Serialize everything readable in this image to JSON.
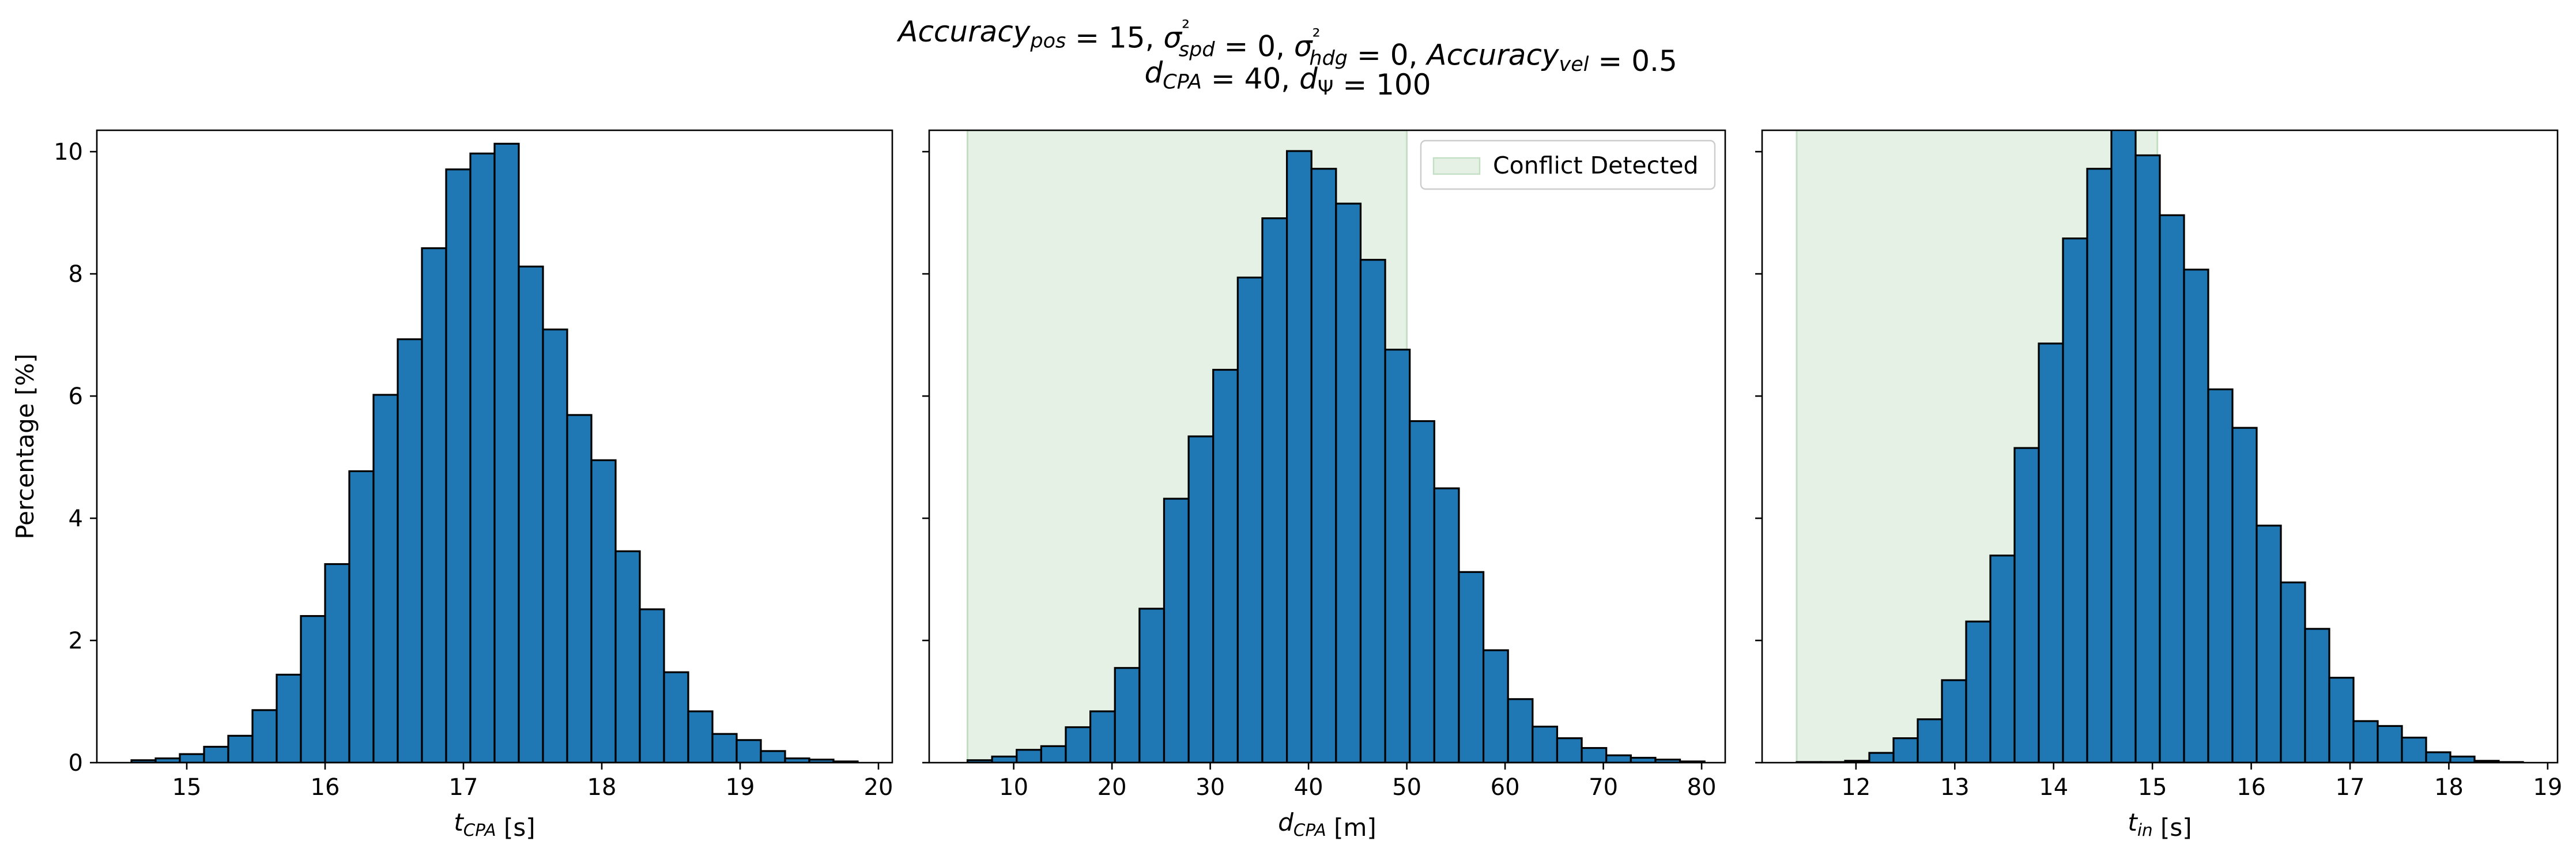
{
  "title_line1": "Accuracy_pos = 15, σ²_spd = 0, σ²_hdg = 0, Accuracy_vel = 0.5",
  "title_line2": "d_CPA = 40, d_Ψ = 100",
  "colors": {
    "bar_fill": "#1f77b4",
    "bar_edge": "#000000",
    "conflict_fill": "#e4f1e4",
    "conflict_edge": "#c3dfc3"
  },
  "chart_data": [
    {
      "type": "bar",
      "title": "",
      "xlabel": "t_CPA [s]",
      "ylabel": "Percentage [%]",
      "xlim": [
        14.35,
        20.1
      ],
      "ylim": [
        0,
        10.35
      ],
      "xticks": [
        15,
        16,
        17,
        18,
        19,
        20
      ],
      "yticks": [
        0,
        2,
        4,
        6,
        8,
        10
      ],
      "bin_start": 14.6,
      "bin_width": 0.175,
      "values": [
        0.04,
        0.07,
        0.14,
        0.26,
        0.44,
        0.86,
        1.44,
        2.4,
        3.25,
        4.77,
        6.02,
        6.93,
        8.42,
        9.71,
        9.97,
        10.13,
        8.12,
        7.09,
        5.69,
        4.95,
        3.46,
        2.51,
        1.48,
        0.84,
        0.47,
        0.37,
        0.19,
        0.07,
        0.05,
        0.02
      ],
      "grid": false
    },
    {
      "type": "bar",
      "title": "",
      "xlabel": "d_CPA [m]",
      "ylabel": "",
      "xlim": [
        1.4,
        82.4
      ],
      "ylim": [
        0,
        10.35
      ],
      "xticks": [
        10,
        20,
        30,
        40,
        50,
        60,
        70,
        80
      ],
      "yticks": [
        0,
        2,
        4,
        6,
        8,
        10
      ],
      "bin_start": 5.3,
      "bin_width": 2.5,
      "values": [
        0.04,
        0.1,
        0.21,
        0.27,
        0.58,
        0.84,
        1.55,
        2.52,
        4.32,
        5.34,
        6.43,
        7.94,
        8.91,
        10.01,
        9.72,
        9.15,
        8.23,
        6.76,
        5.59,
        4.49,
        3.12,
        1.84,
        1.04,
        0.59,
        0.4,
        0.24,
        0.12,
        0.08,
        0.05,
        0.02
      ],
      "conflict_region": [
        5.3,
        50
      ],
      "legend": {
        "entries": [
          "Conflict Detected"
        ],
        "placement": "top-right"
      },
      "grid": false
    },
    {
      "type": "bar",
      "title": "",
      "xlabel": "t_in [s]",
      "ylabel": "",
      "xlim": [
        11.05,
        19.1
      ],
      "ylim": [
        0,
        10.35
      ],
      "xticks": [
        12,
        13,
        14,
        15,
        16,
        17,
        18,
        19
      ],
      "yticks": [
        0,
        2,
        4,
        6,
        8,
        10
      ],
      "bin_start": 11.4,
      "bin_width": 0.245,
      "values": [
        0.01,
        0.01,
        0.03,
        0.16,
        0.4,
        0.71,
        1.35,
        2.31,
        3.39,
        5.15,
        6.86,
        8.58,
        9.72,
        10.4,
        9.94,
        8.96,
        8.07,
        6.11,
        5.48,
        3.88,
        2.95,
        2.19,
        1.39,
        0.68,
        0.6,
        0.41,
        0.17,
        0.1,
        0.03,
        0.01
      ],
      "conflict_region": [
        11.4,
        15.05
      ],
      "grid": false
    }
  ]
}
